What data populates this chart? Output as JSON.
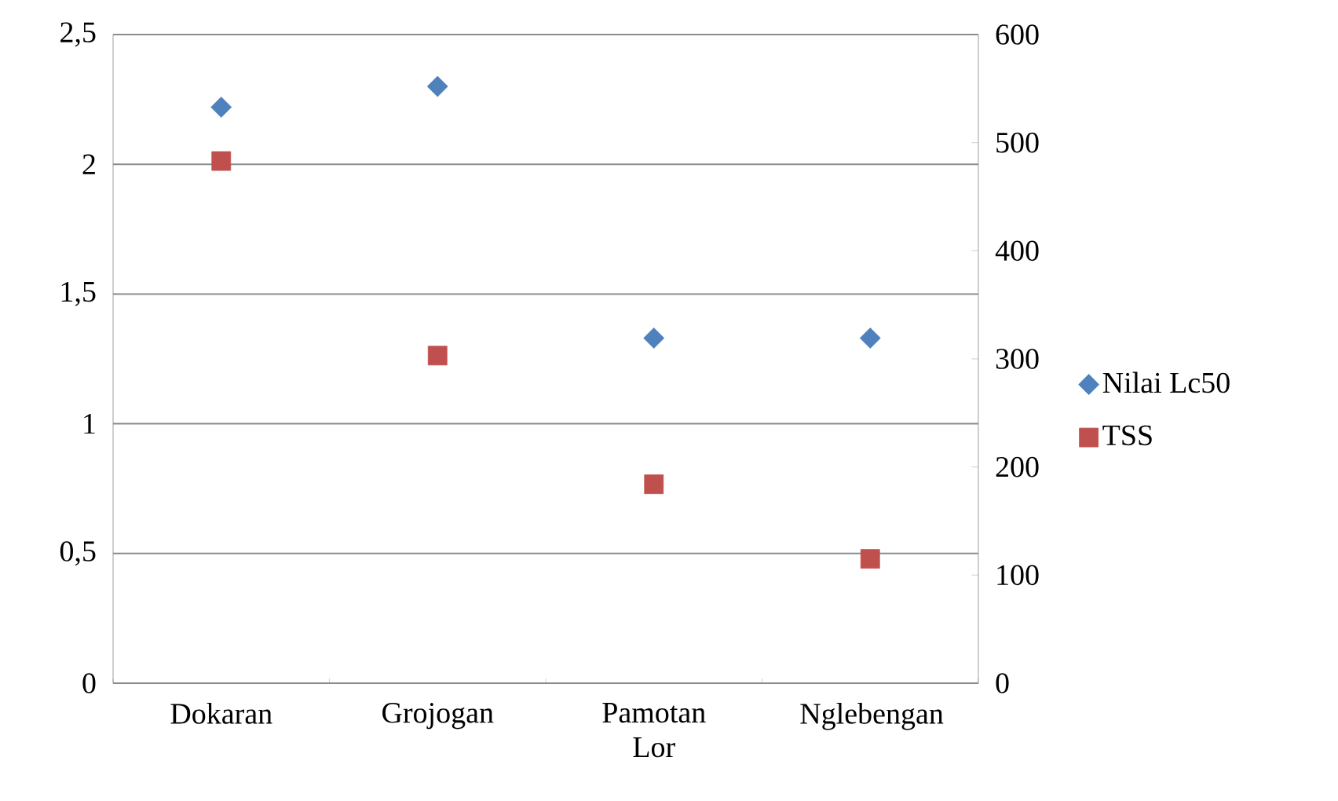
{
  "chart_data": {
    "type": "scatter",
    "categories": [
      "Dokaran",
      "Grojogan",
      "Pamotan Lor",
      "Nglebengan"
    ],
    "series": [
      {
        "name": "Nilai Lc50",
        "color": "#4f81bd",
        "marker": "diamond",
        "values": [
          2.22,
          2.3,
          1.33,
          1.33
        ]
      },
      {
        "name": "TSS",
        "color": "#c0504d",
        "marker": "square",
        "axis": "y2",
        "values": [
          483,
          303,
          184,
          115
        ]
      }
    ],
    "ylim": [
      0,
      2.5
    ],
    "yticks": [
      0,
      {
        "value": 0.5,
        "label": "0,5"
      },
      1,
      {
        "value": 1.5,
        "label": "1,5"
      },
      2,
      {
        "value": 2.5,
        "label": "2,5"
      }
    ],
    "y2lim": [
      0,
      600
    ],
    "y2ticks": [
      0,
      100,
      200,
      300,
      400,
      500,
      600
    ],
    "grid": "y",
    "legend": "right"
  }
}
